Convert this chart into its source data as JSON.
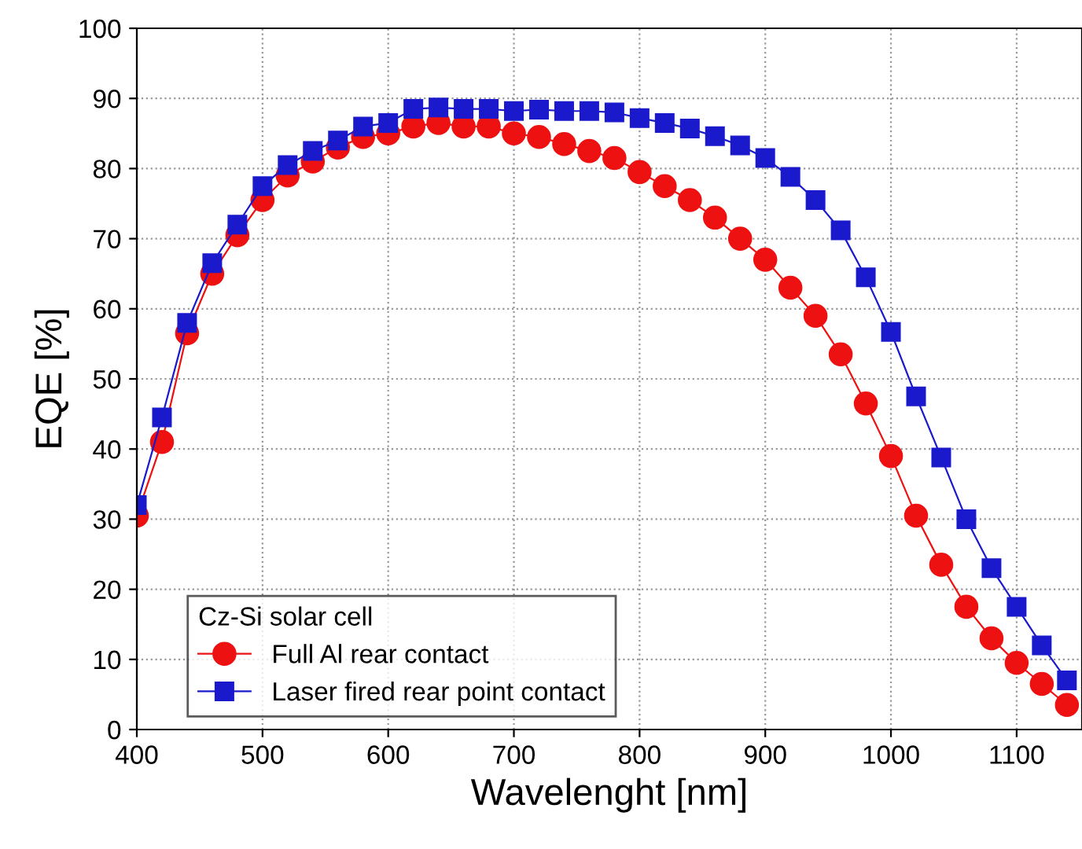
{
  "chart_data": {
    "type": "line",
    "xlabel": "Wavelenght [nm]",
    "ylabel": "EQE [%]",
    "legend_title": "Cz-Si solar cell",
    "x": [
      400,
      420,
      440,
      460,
      480,
      500,
      520,
      540,
      560,
      580,
      600,
      620,
      640,
      660,
      680,
      700,
      720,
      740,
      760,
      780,
      800,
      820,
      840,
      860,
      880,
      900,
      920,
      940,
      960,
      980,
      1000,
      1020,
      1040,
      1060,
      1080,
      1100,
      1120,
      1140
    ],
    "series": [
      {
        "name": "Full Al rear contact",
        "color": "#ee1111",
        "marker": "circle",
        "values": [
          30.5,
          41,
          56.5,
          65,
          70.5,
          75.5,
          79,
          81,
          83,
          84.5,
          85,
          86,
          86.5,
          86,
          86,
          85,
          84.5,
          83.5,
          82.5,
          81.5,
          79.5,
          77.5,
          75.5,
          73,
          70,
          67,
          63,
          59,
          53.5,
          46.5,
          39,
          30.5,
          23.5,
          17.5,
          13,
          9.5,
          6.5,
          3.5
        ]
      },
      {
        "name": "Laser fired rear point contact",
        "color": "#1a1acc",
        "marker": "square",
        "values": [
          32,
          44.5,
          58,
          66.5,
          72,
          77.5,
          80.5,
          82.5,
          84,
          86,
          86.5,
          88.5,
          88.7,
          88.5,
          88.5,
          88.2,
          88.4,
          88.2,
          88.2,
          88,
          87.2,
          86.5,
          85.7,
          84.6,
          83.3,
          81.5,
          78.8,
          75.5,
          71.2,
          64.5,
          56.7,
          47.5,
          38.8,
          30,
          23,
          17.5,
          12,
          7
        ]
      }
    ],
    "xlim": [
      400,
      1152
    ],
    "xticks": [
      400,
      500,
      600,
      700,
      800,
      900,
      1000,
      1100
    ],
    "ylim": [
      0,
      100
    ],
    "yticks": [
      0,
      10,
      20,
      30,
      40,
      50,
      60,
      70,
      80,
      90,
      100
    ],
    "grid": true,
    "legend": "bottom left",
    "line_style": "solid"
  }
}
